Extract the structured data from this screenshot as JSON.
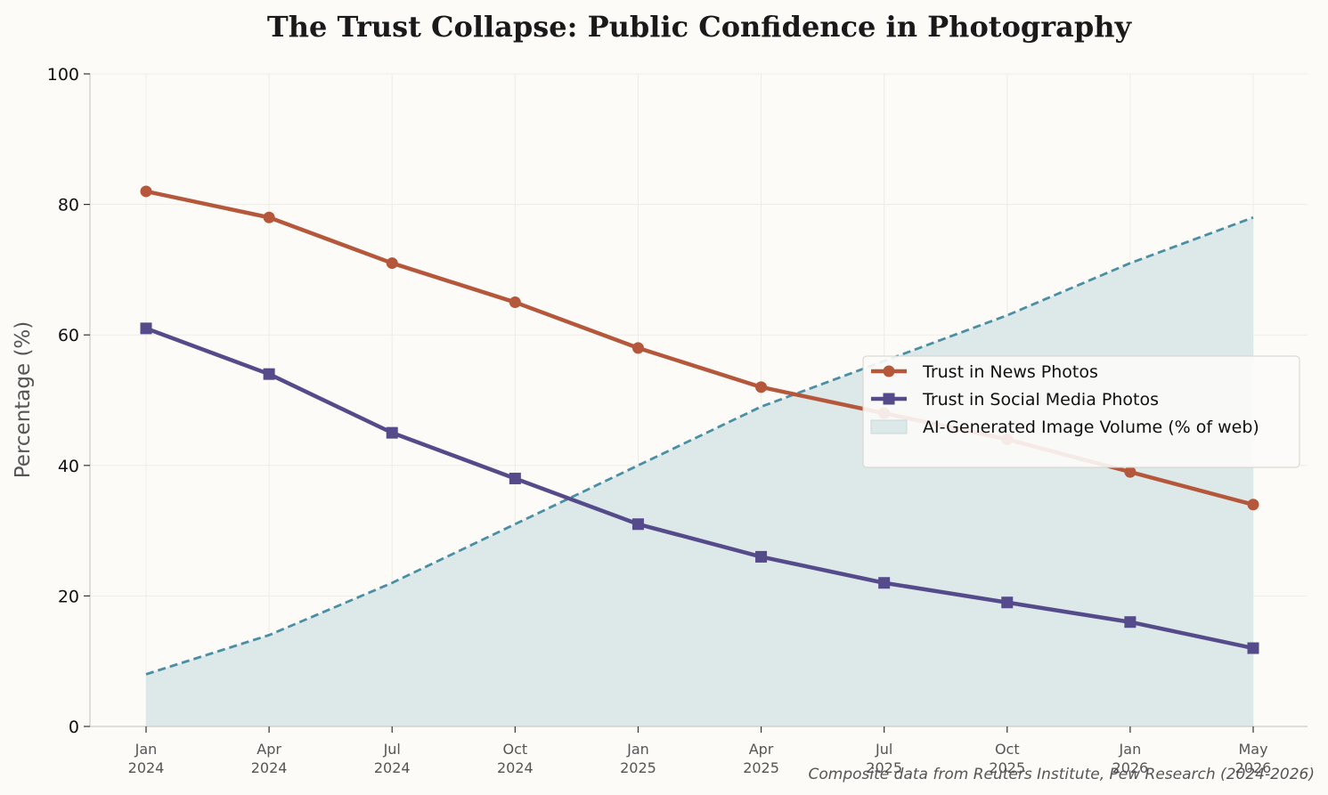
{
  "chart_data": {
    "type": "line",
    "title": "The Trust Collapse: Public Confidence in Photography",
    "ylabel": "Percentage (%)",
    "xlabel": "",
    "ylim": [
      0,
      100
    ],
    "yticks": [
      "0",
      "20",
      "40",
      "60",
      "80",
      "100"
    ],
    "categories": [
      "Jan 2024",
      "Apr 2024",
      "Jul 2024",
      "Oct 2024",
      "Jan 2025",
      "Apr 2025",
      "Jul 2025",
      "Oct 2025",
      "Jan 2026",
      "May 2026"
    ],
    "category_labels": [
      [
        "Jan",
        "2024"
      ],
      [
        "Apr",
        "2024"
      ],
      [
        "Jul",
        "2024"
      ],
      [
        "Oct",
        "2024"
      ],
      [
        "Jan",
        "2025"
      ],
      [
        "Apr",
        "2025"
      ],
      [
        "Jul",
        "2025"
      ],
      [
        "Oct",
        "2025"
      ],
      [
        "Jan",
        "2026"
      ],
      [
        "May",
        "2026"
      ]
    ],
    "series": [
      {
        "name": "Trust in News Photos",
        "kind": "line",
        "marker": "circle",
        "color": "#b5573a",
        "values": [
          82,
          78,
          71,
          65,
          58,
          52,
          48,
          44,
          39,
          34
        ]
      },
      {
        "name": "Trust in Social Media Photos",
        "kind": "line",
        "marker": "square",
        "color": "#554a8a",
        "values": [
          61,
          54,
          45,
          38,
          31,
          26,
          22,
          19,
          16,
          12
        ]
      },
      {
        "name": "AI-Generated Image Volume (% of web)",
        "kind": "area",
        "color": "#4a8fa3",
        "fill": "#dde8e9",
        "values": [
          8,
          14,
          22,
          31,
          40,
          49,
          56,
          63,
          71,
          78
        ]
      }
    ],
    "grid": true,
    "legend_position": "center-right",
    "source": "Composite data from Reuters Institute, Pew Research (2024-2026)"
  }
}
